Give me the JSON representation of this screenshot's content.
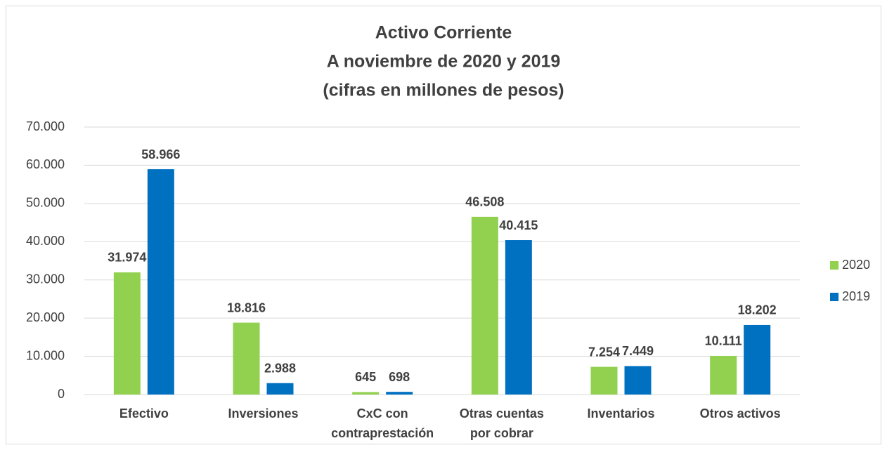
{
  "chart_data": {
    "type": "bar",
    "title": [
      "Activo Corriente",
      "A noviembre de 2020 y 2019",
      "(cifras en millones de pesos)"
    ],
    "categories": [
      [
        "Efectivo"
      ],
      [
        "Inversiones"
      ],
      [
        "CxC con",
        "contraprestación"
      ],
      [
        "Otras cuentas",
        "por cobrar"
      ],
      [
        "Inventarios"
      ],
      [
        "Otros activos"
      ]
    ],
    "series": [
      {
        "name": "2020",
        "color": "#92d050",
        "values": [
          31974,
          18816,
          645,
          46508,
          7254,
          10111
        ],
        "value_labels": [
          "31.974",
          "18.816",
          "645",
          "46.508",
          "7.254",
          "10.111"
        ]
      },
      {
        "name": "2019",
        "color": "#0070c0",
        "values": [
          58966,
          2988,
          698,
          40415,
          7449,
          18202
        ],
        "value_labels": [
          "58.966",
          "2.988",
          "698",
          "40.415",
          "7.449",
          "18.202"
        ]
      }
    ],
    "ylim": [
      0,
      70000
    ],
    "yticks": [
      0,
      {
        "value": 10000,
        "label": "10.000"
      },
      {
        "value": 20000,
        "label": "20.000"
      },
      {
        "value": 30000,
        "label": "30.000"
      },
      {
        "value": 40000,
        "label": "40.000"
      },
      {
        "value": 50000,
        "label": "50.000"
      },
      {
        "value": 60000,
        "label": "60.000"
      },
      {
        "value": 70000,
        "label": "70.000"
      }
    ],
    "grid": true,
    "legend": "right"
  }
}
